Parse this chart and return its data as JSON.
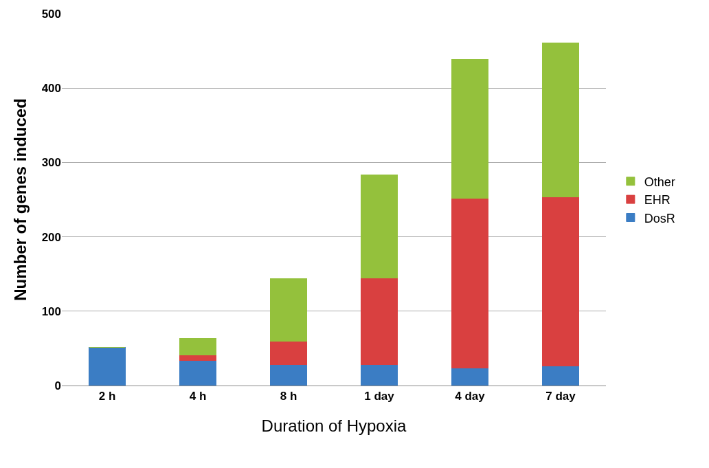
{
  "chart_data": {
    "type": "bar",
    "stacked": true,
    "xlabel": "Duration of Hypoxia",
    "ylabel": "Number of genes induced",
    "categories": [
      "2 h",
      "4 h",
      "8 h",
      "1 day",
      "4 day",
      "7 day"
    ],
    "series": [
      {
        "name": "DosR",
        "color": "#3b7dc4",
        "values": [
          51,
          34,
          28,
          28,
          24,
          26
        ]
      },
      {
        "name": "EHR",
        "color": "#d94040",
        "values": [
          0,
          7,
          32,
          117,
          228,
          228
        ]
      },
      {
        "name": "Other",
        "color": "#94c13c",
        "values": [
          0,
          22,
          84,
          138,
          187,
          207
        ]
      }
    ],
    "ylim": [
      0,
      500
    ],
    "yticks": [
      0,
      100,
      200,
      300,
      400,
      500
    ],
    "grid": "y",
    "legend": "right"
  }
}
